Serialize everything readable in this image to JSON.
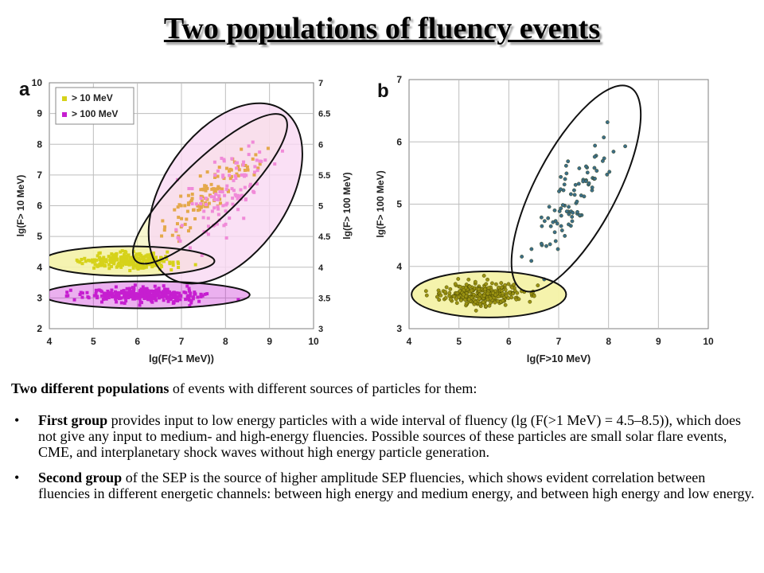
{
  "slide": {
    "title": "Two populations of fluency events"
  },
  "text": {
    "intro_bold": "Two different populations",
    "intro_rest": " of events with different sources of particles for them:",
    "bullets": [
      {
        "bullet": "•",
        "bold": " First group",
        "rest": " provides input to low energy particles with a wide interval of fluency (lg (F(>1 MeV) = 4.5–8.5)), which does not give any input to medium- and high-energy fluencies. Possible sources of these particles are small solar flare events, CME, and interplanetary shock waves without high energy particle generation."
      },
      {
        "bullet": "•",
        "bold": " Second group",
        "rest": " of the SEP is the source of higher amplitude SEP fluencies, which shows evident correlation between fluencies in different energetic channels: between high energy and medium energy, and between high energy and low energy."
      }
    ]
  },
  "colors": {
    "yellow": "#d6d21a",
    "yellow_fill": "#f4f2a8",
    "magenta": "#c61ed0",
    "pink": "#f08ad8",
    "pink_fill": "#f9d8f2",
    "navy": "#1f2a6b",
    "grid": "#bdbdbd"
  },
  "chart_data": [
    {
      "type": "scatter",
      "panel_label": "a",
      "xlabel": "lg(F(>1 MeV))",
      "ylabel": "lg(F> 10 MeV)",
      "y2label": "lg(F> 100 MeV)",
      "xlim": [
        4,
        10
      ],
      "ylim": [
        2,
        10
      ],
      "y2lim": [
        3,
        7
      ],
      "xticks": [
        "4",
        "5",
        "6",
        "7",
        "8",
        "9",
        "10"
      ],
      "yticks": [
        "2",
        "3",
        "4",
        "5",
        "6",
        "7",
        "8",
        "9",
        "10"
      ],
      "y2ticks": [
        "3",
        "3.5",
        "4",
        "4.5",
        "5",
        "5.5",
        "6",
        "6.5",
        "7"
      ],
      "grid": true,
      "legend_position": "top-left",
      "series": [
        {
          "name": "> 10 MeV",
          "axis": "left",
          "clusters": [
            {
              "cx": 5.8,
              "cy": 4.2,
              "sx": 0.75,
              "sy": 0.22,
              "n": 260
            },
            {
              "cx": 7.6,
              "cy": 6.4,
              "sx": 0.75,
              "sy": 0.95,
              "n": 110
            }
          ],
          "ellipses": [
            {
              "cx": 5.8,
              "cy": 4.2,
              "rx": 1.95,
              "ry": 0.48,
              "angle": 0
            },
            {
              "cx": 7.65,
              "cy": 6.55,
              "rx": 2.35,
              "ry": 0.95,
              "angle": 44
            }
          ]
        },
        {
          "name": "> 100 MeV",
          "axis": "right",
          "clusters": [
            {
              "cx": 6.2,
              "cy": 3.55,
              "sx": 1.0,
              "sy": 0.1,
              "n": 330
            },
            {
              "cx": 8.0,
              "cy": 5.2,
              "sx": 0.75,
              "sy": 0.65,
              "n": 110
            }
          ],
          "ellipses": [
            {
              "cx": 6.2,
              "cy": 3.55,
              "rx": 2.35,
              "ry": 0.22,
              "angle": 0
            },
            {
              "cx": 8.0,
              "cy": 5.2,
              "rx": 2.3,
              "ry": 1.0,
              "angle": 55
            }
          ]
        }
      ]
    },
    {
      "type": "scatter",
      "panel_label": "b",
      "xlabel": "lg(F>10 MeV)",
      "ylabel": "lg(F> 100 MeV)",
      "xlim": [
        4,
        10
      ],
      "ylim": [
        3,
        7
      ],
      "xticks": [
        "4",
        "5",
        "6",
        "7",
        "8",
        "9",
        "10"
      ],
      "yticks": [
        "3",
        "4",
        "5",
        "6",
        "7"
      ],
      "grid": true,
      "series": [
        {
          "name": "",
          "clusters": [
            {
              "cx": 5.5,
              "cy": 3.55,
              "sx": 0.6,
              "sy": 0.16,
              "n": 280
            },
            {
              "cx": 7.3,
              "cy": 5.1,
              "sx": 0.7,
              "sy": 0.55,
              "n": 90
            }
          ],
          "ellipses": [
            {
              "cx": 5.6,
              "cy": 3.55,
              "rx": 1.55,
              "ry": 0.37,
              "angle": 0
            },
            {
              "cx": 7.35,
              "cy": 5.25,
              "rx": 2.3,
              "ry": 0.65,
              "angle": 62
            }
          ]
        }
      ]
    }
  ]
}
